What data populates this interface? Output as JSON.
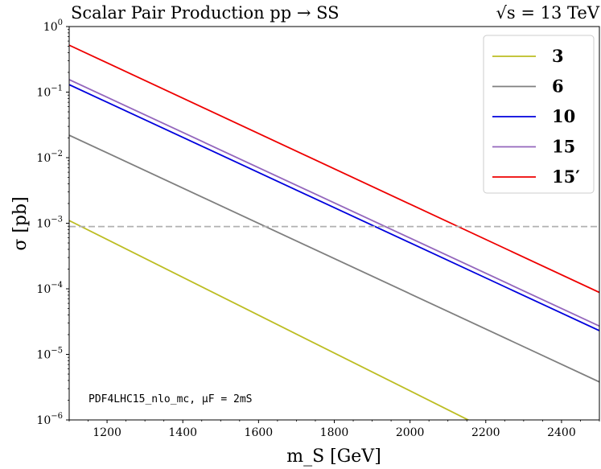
{
  "chart_data": {
    "type": "line",
    "title_left": "Scalar Pair Production pp → SS",
    "title_right": "√s = 13 TeV",
    "xlabel": "m_S [GeV]",
    "ylabel": "σ [pb]",
    "x_scale": "linear",
    "y_scale": "log",
    "xlim": [
      1100,
      2500
    ],
    "ylim": [
      1e-06,
      1
    ],
    "x_ticks": [
      1200,
      1400,
      1600,
      1800,
      2000,
      2200,
      2400
    ],
    "y_ticks": [
      -6,
      -5,
      -4,
      -3,
      -2,
      -1,
      0
    ],
    "grid": false,
    "legend_position": "top-right",
    "reference_line": {
      "y": 0.00089,
      "style": "dashed",
      "color": "#b0b0b0"
    },
    "annotation": "PDF4LHC15_nlo_mc, μF = 2mS",
    "series": [
      {
        "name": "3",
        "color": "#bcbd22",
        "x": [
          1100,
          2500
        ],
        "y": [
          0.0011,
          1e-07
        ]
      },
      {
        "name": "6",
        "color": "#7f7f7f",
        "x": [
          1100,
          2500
        ],
        "y": [
          0.022,
          3.8e-06
        ]
      },
      {
        "name": "10",
        "color": "#0000dd",
        "x": [
          1100,
          2500
        ],
        "y": [
          0.13,
          2.3e-05
        ]
      },
      {
        "name": "15",
        "color": "#9467bd",
        "x": [
          1100,
          2500
        ],
        "y": [
          0.155,
          2.7e-05
        ]
      },
      {
        "name": "15′",
        "color": "#ee0000",
        "x": [
          1100,
          2500
        ],
        "y": [
          0.52,
          8.8e-05
        ]
      }
    ]
  }
}
